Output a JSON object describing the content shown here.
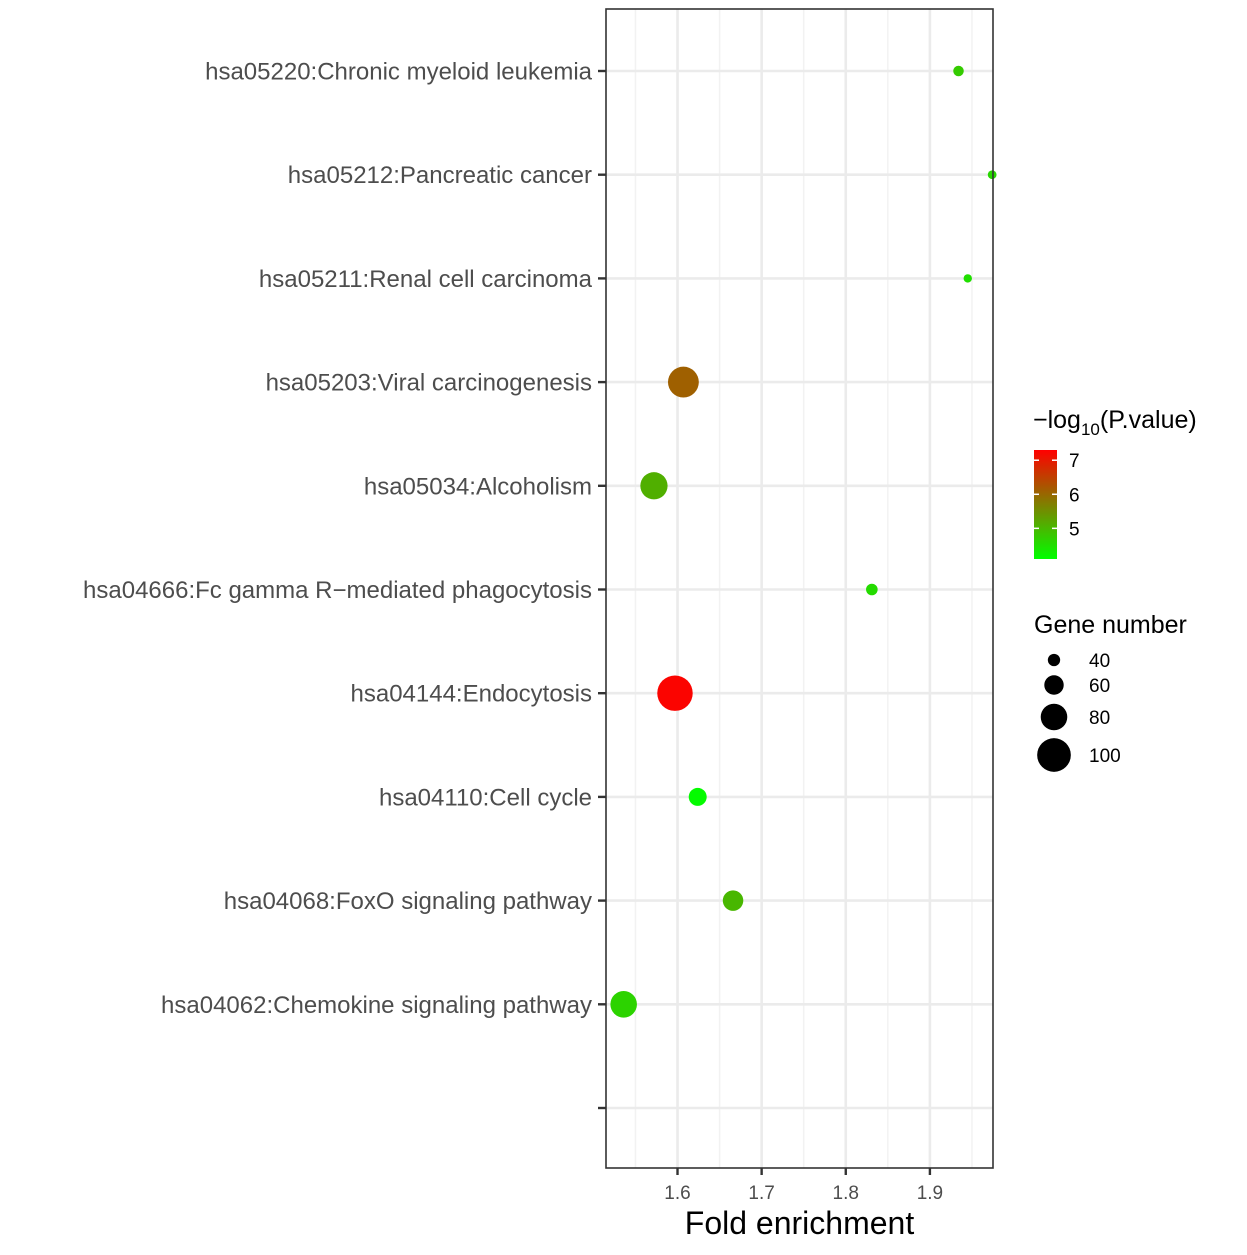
{
  "chart_data": {
    "type": "scatter",
    "xlabel": "Fold enrichment",
    "ylabel": "",
    "xlim": [
      1.515,
      1.975
    ],
    "x_ticks": [
      1.6,
      1.7,
      1.8,
      1.9
    ],
    "x_tick_labels": [
      "1.6",
      "1.7",
      "1.8",
      "1.9"
    ],
    "grid": true,
    "categories": [
      "hsa05220:Chronic myeloid leukemia",
      "hsa05212:Pancreatic cancer",
      "hsa05211:Renal cell carcinoma",
      "hsa05203:Viral carcinogenesis",
      "hsa05034:Alcoholism",
      "hsa04666:Fc gamma R−mediated phagocytosis",
      "hsa04144:Endocytosis",
      "hsa04110:Cell cycle",
      "hsa04068:FoxO signaling pathway",
      "hsa04062:Chemokine signaling pathway",
      ""
    ],
    "points": [
      {
        "term": "hsa05220:Chronic myeloid leukemia",
        "fold_enrichment": 1.934,
        "neg_log10_p": 4.75,
        "gene_number": 35
      },
      {
        "term": "hsa05212:Pancreatic cancer",
        "fold_enrichment": 1.974,
        "neg_log10_p": 4.6,
        "gene_number": 30
      },
      {
        "term": "hsa05211:Renal cell carcinoma",
        "fold_enrichment": 1.945,
        "neg_log10_p": 4.5,
        "gene_number": 29
      },
      {
        "term": "hsa05203:Viral carcinogenesis",
        "fold_enrichment": 1.607,
        "neg_log10_p": 6.1,
        "gene_number": 92
      },
      {
        "term": "hsa05034:Alcoholism",
        "fold_enrichment": 1.572,
        "neg_log10_p": 5.1,
        "gene_number": 82
      },
      {
        "term": "hsa04666:Fc gamma R−mediated phagocytosis",
        "fold_enrichment": 1.831,
        "neg_log10_p": 4.55,
        "gene_number": 38
      },
      {
        "term": "hsa04144:Endocytosis",
        "fold_enrichment": 1.597,
        "neg_log10_p": 7.25,
        "gene_number": 105
      },
      {
        "term": "hsa04110:Cell cycle",
        "fold_enrichment": 1.624,
        "neg_log10_p": 4.15,
        "gene_number": 56
      },
      {
        "term": "hsa04068:FoxO signaling pathway",
        "fold_enrichment": 1.666,
        "neg_log10_p": 5.0,
        "gene_number": 63
      },
      {
        "term": "hsa04062:Chemokine signaling pathway",
        "fold_enrichment": 1.536,
        "neg_log10_p": 4.65,
        "gene_number": 80
      }
    ],
    "color_legend": {
      "title_prefix": "−log",
      "title_sub": "10",
      "title_suffix": "(P.value)",
      "range": [
        4.1,
        7.3
      ],
      "ticks": [
        7,
        6,
        5
      ],
      "tick_labels": [
        "7",
        "6",
        "5"
      ],
      "colors": [
        "#00ff00",
        "#ff0000"
      ]
    },
    "size_legend": {
      "title": "Gene number",
      "values": [
        40,
        60,
        80,
        100
      ],
      "labels": [
        "40",
        "60",
        "80",
        "100"
      ]
    }
  }
}
